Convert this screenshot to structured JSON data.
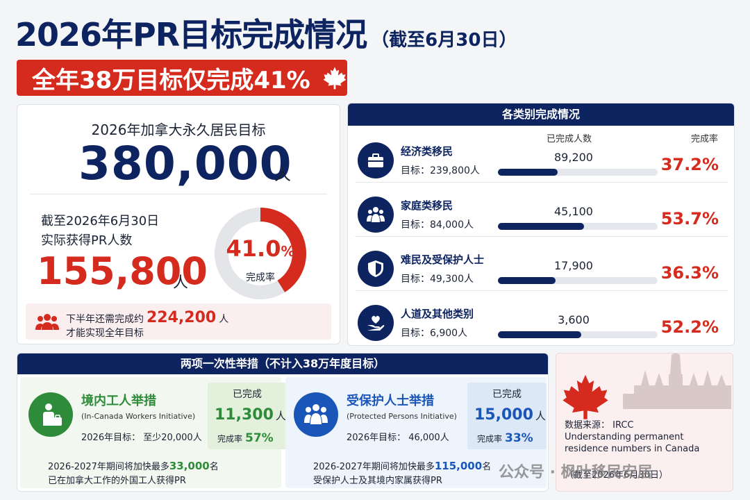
{
  "header": {
    "title": "2026年PR目标完成情况",
    "subtitle": "（截至6月30日）",
    "banner": "全年38万目标仅完成41%"
  },
  "goal": {
    "label": "2026年加拿大永久居民目标",
    "value": "380,000",
    "unit": "人",
    "as_of_line1": "截至2026年6月30日",
    "as_of_line2": "实际获得PR人数",
    "actual_value": "155,800",
    "actual_unit": "人",
    "completion_pct": "41.0",
    "completion_pct_sign": "%",
    "completion_fraction": 0.41,
    "completion_label": "完成率",
    "remain_prefix": "下半年还需完成约",
    "remain_value": "224,200",
    "remain_unit": "人",
    "remain_line2": "才能实现全年目标"
  },
  "categories": {
    "title": "各类别完成情况",
    "col_done": "已完成人数",
    "col_rate": "完成率",
    "items": [
      {
        "name": "经济类移民",
        "target": "目标：239,800人",
        "done": "89,200",
        "rate": "37.2%",
        "fraction": 0.372,
        "icon": "briefcase-icon"
      },
      {
        "name": "家庭类移民",
        "target": "目标：84,000人",
        "done": "45,100",
        "rate": "53.7%",
        "fraction": 0.537,
        "icon": "family-icon"
      },
      {
        "name": "难民及受保护人士",
        "target": "目标：49,300人",
        "done": "17,900",
        "rate": "36.3%",
        "fraction": 0.363,
        "icon": "shield-icon"
      },
      {
        "name": "人道及其他类别",
        "target": "目标：6,900人",
        "done": "3,600",
        "rate": "52.2%",
        "fraction": 0.522,
        "icon": "heart-hand-icon"
      }
    ]
  },
  "measures": {
    "title": "两项一次性举措（不计入38万年度目标）",
    "workers": {
      "name": "境内工人举措",
      "en": "(In-Canada Workers Initiative)",
      "target": "2026年目标：  至少20,000人",
      "done_label": "已完成",
      "done_value": "11,300",
      "done_unit": "人",
      "rate_label": "完成率",
      "rate": "57%",
      "note1_prefix": "2026-2027年期间将加快最多",
      "note1_value": "33,000",
      "note1_suffix": "名",
      "note2": "已在加拿大工作的外国工人获得PR",
      "color": "#2e8b3a"
    },
    "protected": {
      "name": "受保护人士举措",
      "en": "(Protected Persons Initiative)",
      "target": "2026年目标：   46,000人",
      "done_label": "已完成",
      "done_value": "15,000",
      "done_unit": "人",
      "rate_label": "完成率",
      "rate": "33%",
      "note1_prefix": "2026-2027年期间将加快最多",
      "note1_value": "115,000",
      "note1_suffix": "名",
      "note2": "受保护人士及其境内家属获得PR",
      "color": "#1a56b8"
    }
  },
  "source": {
    "label": "数据来源：  IRCC",
    "title": "Understanding permanent residence numbers in Canada",
    "date": "（截至2026年6月30日）",
    "watermark": "公众号 · 枫叶移民安居"
  },
  "colors": {
    "navy": "#0d2460",
    "red": "#d52b1e",
    "green": "#2e8b3a",
    "blue": "#1a56b8"
  }
}
